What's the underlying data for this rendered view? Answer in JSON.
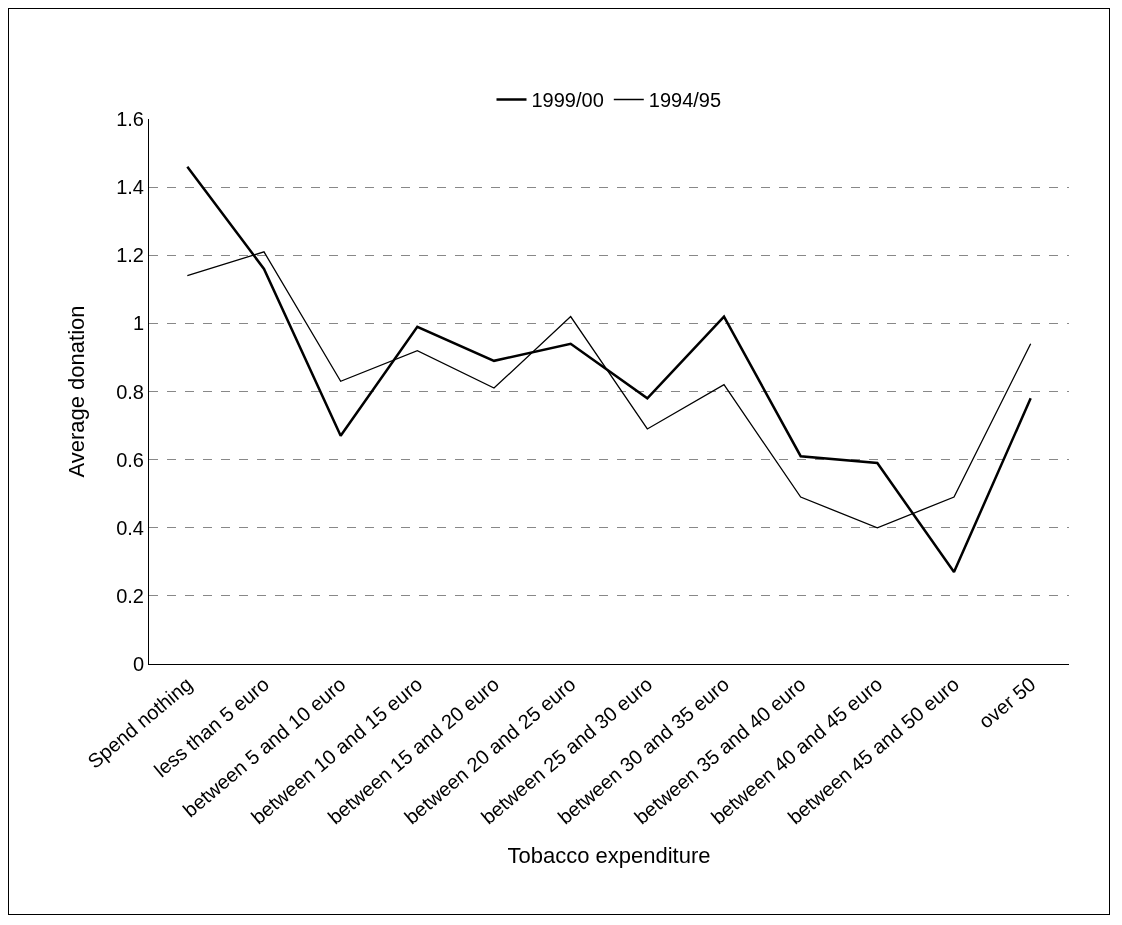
{
  "chart_data": {
    "type": "line",
    "xlabel": "Tobacco expenditure",
    "ylabel": "Average donation",
    "categories": [
      "Spend nothing",
      "less than 5 euro",
      "between 5 and 10 euro",
      "between 10 and 15 euro",
      "between 15 and 20 euro",
      "between 20 and 25 euro",
      "between 25 and 30 euro",
      "between 30 and 35 euro",
      "between 35 and 40 euro",
      "between 40 and 45 euro",
      "between 45 and 50 euro",
      "over 50"
    ],
    "series": [
      {
        "name": "1999/00",
        "color": "#000000",
        "values": [
          1.46,
          1.16,
          0.67,
          0.99,
          0.89,
          0.94,
          0.78,
          1.02,
          0.61,
          0.59,
          0.27,
          0.78
        ]
      },
      {
        "name": "1994/95",
        "color": "#000000",
        "values": [
          1.14,
          1.21,
          0.83,
          0.92,
          0.81,
          1.02,
          0.69,
          0.82,
          0.49,
          0.4,
          0.49,
          0.94
        ]
      }
    ],
    "ylim": [
      0,
      1.6
    ],
    "yticks": [
      0,
      0.2,
      0.4,
      0.6,
      0.8,
      1,
      1.2,
      1.4,
      1.6
    ],
    "grid": "y",
    "legend": "top",
    "marker": "none",
    "line_style": "solid"
  }
}
